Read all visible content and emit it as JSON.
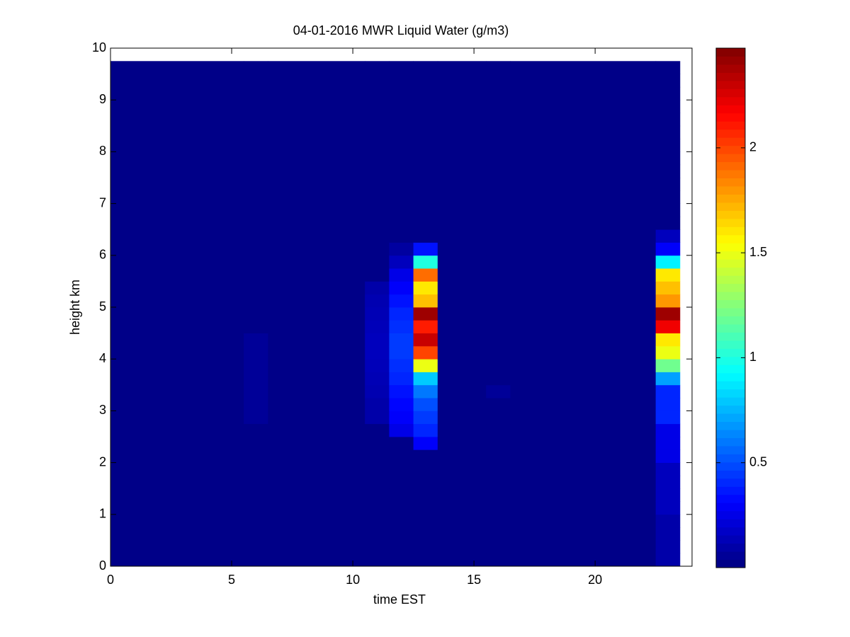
{
  "chart_data": {
    "type": "heatmap",
    "title": "04-01-2016 MWR Liquid Water (g/m3)",
    "x_label": "time EST",
    "y_label": "height km",
    "x_bins": [
      0,
      5.5,
      6.5,
      10.5,
      11.5,
      12.5,
      13.5,
      15.5,
      16.5,
      22.5,
      23.5
    ],
    "y_bins": [
      0,
      0.25,
      0.5,
      0.75,
      1,
      1.25,
      1.5,
      1.75,
      2,
      2.25,
      2.5,
      2.75,
      3,
      3.25,
      3.5,
      3.75,
      4,
      4.25,
      4.5,
      4.75,
      5,
      5.25,
      5.5,
      5.75,
      6,
      6.25,
      6.5,
      6.75,
      7,
      7.25,
      7.5,
      7.75,
      8,
      8.25,
      8.5,
      8.75,
      9,
      9.25,
      9.5,
      9.75
    ],
    "z": [
      [
        0.02,
        0.02,
        0.02,
        0.02,
        0.02,
        0.02,
        0.02,
        0.02,
        0.02,
        0.02,
        0.02,
        0.02,
        0.02,
        0.02,
        0.02,
        0.02,
        0.02,
        0.02,
        0.02,
        0.02,
        0.02,
        0.02,
        0.02,
        0.02,
        0.02,
        0.02,
        0.02,
        0.02,
        0.02,
        0.02,
        0.02,
        0.02,
        0.02,
        0.02,
        0.02,
        0.02,
        0.02,
        0.02,
        0.02
      ],
      [
        0.02,
        0.02,
        0.02,
        0.02,
        0.02,
        0.02,
        0.02,
        0.02,
        0.02,
        0.02,
        0.02,
        0.06,
        0.06,
        0.06,
        0.06,
        0.06,
        0.06,
        0.06,
        0.02,
        0.02,
        0.02,
        0.02,
        0.02,
        0.02,
        0.02,
        0.02,
        0.02,
        0.02,
        0.02,
        0.02,
        0.02,
        0.02,
        0.02,
        0.02,
        0.02,
        0.02,
        0.02,
        0.02,
        0.02
      ],
      [
        0.02,
        0.02,
        0.02,
        0.02,
        0.02,
        0.02,
        0.02,
        0.02,
        0.02,
        0.02,
        0.02,
        0.02,
        0.02,
        0.02,
        0.02,
        0.02,
        0.02,
        0.02,
        0.02,
        0.02,
        0.02,
        0.02,
        0.02,
        0.02,
        0.02,
        0.02,
        0.02,
        0.02,
        0.02,
        0.02,
        0.02,
        0.02,
        0.02,
        0.02,
        0.02,
        0.02,
        0.02,
        0.02,
        0.02
      ],
      [
        0.02,
        0.02,
        0.02,
        0.02,
        0.02,
        0.02,
        0.02,
        0.02,
        0.02,
        0.02,
        0.02,
        0.1,
        0.1,
        0.12,
        0.13,
        0.14,
        0.15,
        0.15,
        0.14,
        0.13,
        0.12,
        0.1,
        0.02,
        0.02,
        0.02,
        0.02,
        0.02,
        0.02,
        0.02,
        0.02,
        0.02,
        0.02,
        0.02,
        0.02,
        0.02,
        0.02,
        0.02,
        0.02,
        0.02
      ],
      [
        0.02,
        0.02,
        0.02,
        0.02,
        0.02,
        0.02,
        0.02,
        0.02,
        0.02,
        0.02,
        0.25,
        0.3,
        0.32,
        0.35,
        0.4,
        0.42,
        0.45,
        0.45,
        0.42,
        0.4,
        0.35,
        0.3,
        0.25,
        0.15,
        0.08,
        0.02,
        0.02,
        0.02,
        0.02,
        0.02,
        0.02,
        0.02,
        0.02,
        0.02,
        0.02,
        0.02,
        0.02,
        0.02,
        0.02
      ],
      [
        0.02,
        0.02,
        0.02,
        0.02,
        0.02,
        0.02,
        0.02,
        0.02,
        0.02,
        0.3,
        0.4,
        0.45,
        0.5,
        0.6,
        0.8,
        1.5,
        2.0,
        2.3,
        2.1,
        2.4,
        1.7,
        1.6,
        1.9,
        1.0,
        0.35,
        0.02,
        0.02,
        0.02,
        0.02,
        0.02,
        0.02,
        0.02,
        0.02,
        0.02,
        0.02,
        0.02,
        0.02,
        0.02,
        0.02
      ],
      [
        0.02,
        0.02,
        0.02,
        0.02,
        0.02,
        0.02,
        0.02,
        0.02,
        0.02,
        0.02,
        0.02,
        0.02,
        0.02,
        0.02,
        0.02,
        0.02,
        0.02,
        0.02,
        0.02,
        0.02,
        0.02,
        0.02,
        0.02,
        0.02,
        0.02,
        0.02,
        0.02,
        0.02,
        0.02,
        0.02,
        0.02,
        0.02,
        0.02,
        0.02,
        0.02,
        0.02,
        0.02,
        0.02,
        0.02
      ],
      [
        0.02,
        0.02,
        0.02,
        0.02,
        0.02,
        0.02,
        0.02,
        0.02,
        0.02,
        0.02,
        0.02,
        0.02,
        0.02,
        0.06,
        0.02,
        0.02,
        0.02,
        0.02,
        0.02,
        0.02,
        0.02,
        0.02,
        0.02,
        0.02,
        0.02,
        0.02,
        0.02,
        0.02,
        0.02,
        0.02,
        0.02,
        0.02,
        0.02,
        0.02,
        0.02,
        0.02,
        0.02,
        0.02,
        0.02
      ],
      [
        0.02,
        0.02,
        0.02,
        0.02,
        0.02,
        0.02,
        0.02,
        0.02,
        0.02,
        0.02,
        0.02,
        0.02,
        0.02,
        0.02,
        0.02,
        0.02,
        0.02,
        0.02,
        0.02,
        0.02,
        0.02,
        0.02,
        0.02,
        0.02,
        0.02,
        0.02,
        0.02,
        0.02,
        0.02,
        0.02,
        0.02,
        0.02,
        0.02,
        0.02,
        0.02,
        0.02,
        0.02,
        0.02,
        0.02
      ],
      [
        0.1,
        0.1,
        0.1,
        0.1,
        0.15,
        0.15,
        0.15,
        0.15,
        0.25,
        0.25,
        0.25,
        0.4,
        0.4,
        0.4,
        0.7,
        1.2,
        1.5,
        1.6,
        2.2,
        2.4,
        1.8,
        1.7,
        1.6,
        0.9,
        0.3,
        0.15,
        0.02,
        0.02,
        0.02,
        0.02,
        0.02,
        0.02,
        0.02,
        0.02,
        0.02,
        0.02,
        0.02,
        0.02,
        0.02
      ]
    ],
    "y_top": 9.75,
    "xlim": [
      0,
      24
    ],
    "xticks": [
      0,
      5,
      10,
      15,
      20
    ],
    "ylim": [
      0,
      10
    ],
    "yticks": [
      0,
      1,
      2,
      3,
      4,
      5,
      6,
      7,
      8,
      9,
      10
    ],
    "clim": [
      0,
      2.475
    ],
    "cticks": [
      0.5,
      1,
      1.5,
      2
    ],
    "colormap": "jet"
  }
}
